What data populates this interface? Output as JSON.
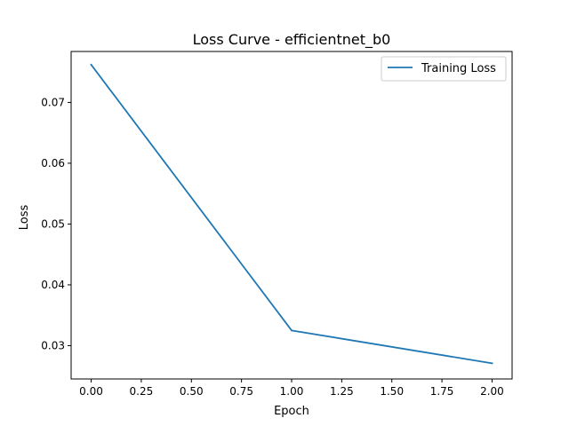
{
  "chart_data": {
    "type": "line",
    "title": "Loss Curve - efficientnet_b0",
    "xlabel": "Epoch",
    "ylabel": "Loss",
    "x": [
      0.0,
      1.0,
      2.0
    ],
    "series": [
      {
        "name": "Training Loss",
        "values": [
          0.0762,
          0.0325,
          0.0271
        ],
        "color": "#1f77b4"
      }
    ],
    "xlim": [
      -0.1,
      2.1
    ],
    "ylim": [
      0.02452,
      0.07838
    ],
    "xticks": [
      0.0,
      0.25,
      0.5,
      0.75,
      1.0,
      1.25,
      1.5,
      1.75,
      2.0
    ],
    "xtick_labels": [
      "0.00",
      "0.25",
      "0.50",
      "0.75",
      "1.00",
      "1.25",
      "1.50",
      "1.75",
      "2.00"
    ],
    "yticks": [
      0.03,
      0.04,
      0.05,
      0.06,
      0.07
    ],
    "ytick_labels": [
      "0.03",
      "0.04",
      "0.05",
      "0.06",
      "0.07"
    ],
    "grid": false,
    "legend": "upper right"
  }
}
